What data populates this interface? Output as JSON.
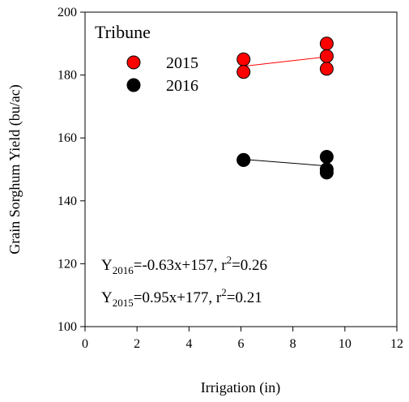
{
  "chart_data": {
    "type": "scatter",
    "xlabel": "Irrigation (in)",
    "ylabel": "Grain Sorghum Yield (bu/ac)",
    "legend_title": "Tribune",
    "legend": "upper left",
    "xlim": [
      0,
      12
    ],
    "xticks": [
      0,
      2,
      4,
      6,
      8,
      10,
      12
    ],
    "ylim": [
      100,
      200
    ],
    "yticks": [
      100,
      120,
      140,
      160,
      180,
      200
    ],
    "series": [
      {
        "name": "2015",
        "color": "#ff0000",
        "x": [
          6.1,
          6.1,
          9.3,
          9.3,
          9.3
        ],
        "values": [
          185,
          181,
          190,
          186,
          182
        ],
        "trend": {
          "x": [
            6.1,
            9.3
          ],
          "values": [
            182.8,
            185.8
          ]
        }
      },
      {
        "name": "2016",
        "color": "#000000",
        "x": [
          6.1,
          6.1,
          9.3,
          9.3,
          9.3
        ],
        "values": [
          153,
          153,
          154,
          150,
          149
        ],
        "trend": {
          "x": [
            6.1,
            9.3
          ],
          "values": [
            153.2,
            151.1
          ]
        }
      }
    ],
    "annotations": [
      {
        "y": "Y",
        "sub": "2016",
        "eq": "=-0.63x+157, r",
        "sup": "2",
        "r2": "=0.26"
      },
      {
        "y": "Y",
        "sub": "2015",
        "eq": "=0.95x+177, r",
        "sup": "2",
        "r2": "=0.21"
      }
    ]
  }
}
